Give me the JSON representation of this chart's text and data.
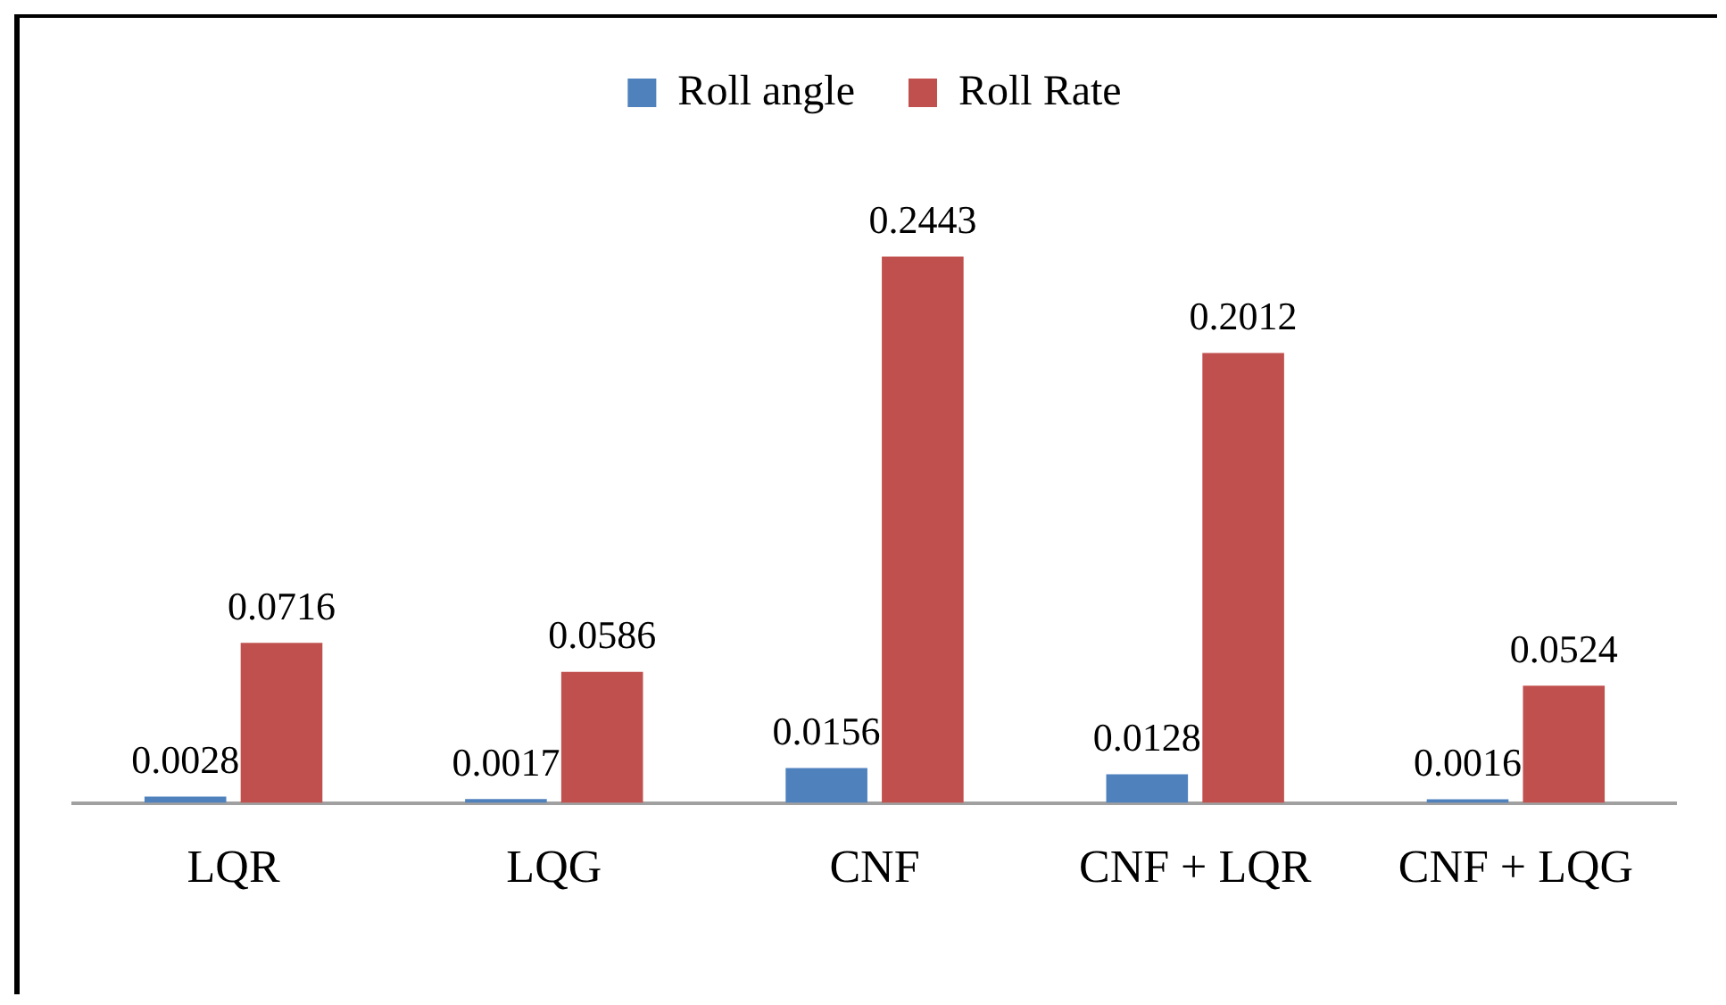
{
  "chart_data": {
    "type": "bar",
    "categories": [
      "LQR",
      "LQG",
      "CNF",
      "CNF + LQR",
      "CNF + LQG"
    ],
    "series": [
      {
        "name": "Roll angle",
        "color": "#4f81bd",
        "values": [
          0.0028,
          0.0017,
          0.0156,
          0.0128,
          0.0016
        ]
      },
      {
        "name": "Roll Rate",
        "color": "#c0504d",
        "values": [
          0.0716,
          0.0586,
          0.2443,
          0.2012,
          0.0524
        ]
      }
    ],
    "data_labels": true,
    "legend": "top",
    "grid": false
  }
}
